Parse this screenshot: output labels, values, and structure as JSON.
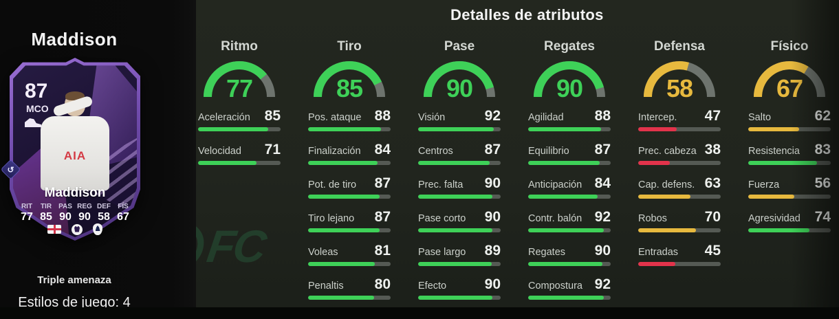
{
  "sidebar": {
    "player_name": "Maddison",
    "card": {
      "rating": "87",
      "position": "MCO",
      "name": "Maddison",
      "shirt_sponsor": "AIA",
      "mini_stats": [
        {
          "label": "RIT",
          "value": "77"
        },
        {
          "label": "TIR",
          "value": "85"
        },
        {
          "label": "PAS",
          "value": "90"
        },
        {
          "label": "REG",
          "value": "90"
        },
        {
          "label": "DEF",
          "value": "58"
        },
        {
          "label": "FÍS",
          "value": "67"
        }
      ],
      "badges": [
        "england-flag",
        "premier-league",
        "tottenham"
      ]
    },
    "chemistry_style": "Triple amenaza",
    "playstyles": "Estilos de juego: 4"
  },
  "watermark": "FC",
  "icons": {
    "untradeable_arrow": "↺"
  },
  "colors": {
    "green": "#3ed158",
    "yellow": "#e7b93e",
    "red": "#e2334b",
    "bar_track": "#555a54",
    "gauge_track": "#6e746e"
  },
  "attributes": {
    "title": "Detalles de atributos",
    "columns": [
      {
        "name": "Ritmo",
        "value": 77,
        "stats": [
          {
            "label": "Aceleración",
            "value": 85
          },
          {
            "label": "Velocidad",
            "value": 71
          }
        ]
      },
      {
        "name": "Tiro",
        "value": 85,
        "stats": [
          {
            "label": "Pos. ataque",
            "value": 88
          },
          {
            "label": "Finalización",
            "value": 84
          },
          {
            "label": "Pot. de tiro",
            "value": 87
          },
          {
            "label": "Tiro lejano",
            "value": 87
          },
          {
            "label": "Voleas",
            "value": 81
          },
          {
            "label": "Penaltis",
            "value": 80
          }
        ]
      },
      {
        "name": "Pase",
        "value": 90,
        "stats": [
          {
            "label": "Visión",
            "value": 92
          },
          {
            "label": "Centros",
            "value": 87
          },
          {
            "label": "Prec. falta",
            "value": 90
          },
          {
            "label": "Pase corto",
            "value": 90
          },
          {
            "label": "Pase largo",
            "value": 89
          },
          {
            "label": "Efecto",
            "value": 90
          }
        ]
      },
      {
        "name": "Regates",
        "value": 90,
        "stats": [
          {
            "label": "Agilidad",
            "value": 88
          },
          {
            "label": "Equilibrio",
            "value": 87
          },
          {
            "label": "Anticipación",
            "value": 84
          },
          {
            "label": "Contr. balón",
            "value": 92
          },
          {
            "label": "Regates",
            "value": 90
          },
          {
            "label": "Compostura",
            "value": 92
          }
        ]
      },
      {
        "name": "Defensa",
        "value": 58,
        "stats": [
          {
            "label": "Intercep.",
            "value": 47
          },
          {
            "label": "Prec. cabeza",
            "value": 38
          },
          {
            "label": "Cap. defens.",
            "value": 63
          },
          {
            "label": "Robos",
            "value": 70
          },
          {
            "label": "Entradas",
            "value": 45
          }
        ]
      },
      {
        "name": "Físico",
        "value": 67,
        "stats": [
          {
            "label": "Salto",
            "value": 62
          },
          {
            "label": "Resistencia",
            "value": 83
          },
          {
            "label": "Fuerza",
            "value": 56
          },
          {
            "label": "Agresividad",
            "value": 74
          }
        ]
      }
    ]
  }
}
